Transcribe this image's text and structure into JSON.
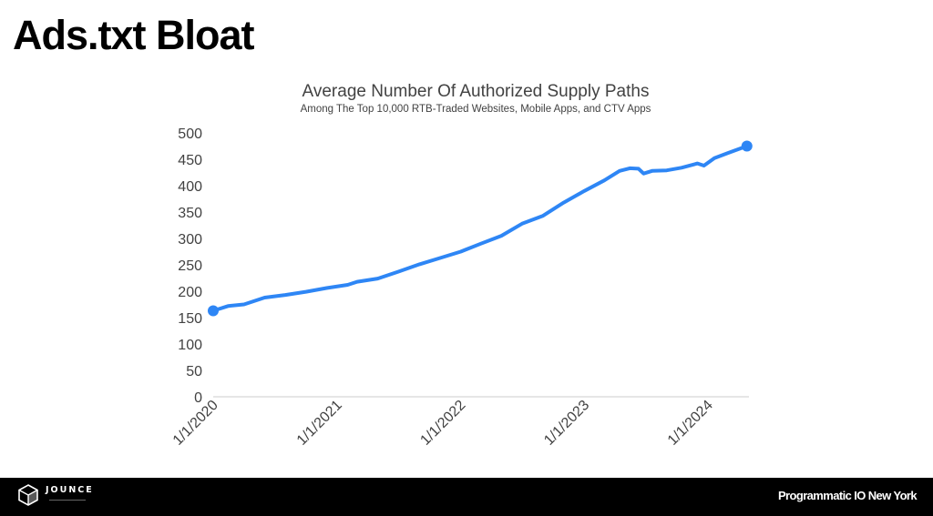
{
  "slide": {
    "title": "Ads.txt Bloat"
  },
  "footer": {
    "brand_name": "JOUNCE",
    "event_name": "Programmatic IO New York"
  },
  "colors": {
    "series": "#2e86f5",
    "axis_text": "#424242",
    "baseline": "#cccccc",
    "footer_bg": "#000000"
  },
  "chart_data": {
    "type": "line",
    "title": "Average Number Of Authorized Supply Paths",
    "subtitle": "Among The Top 10,000 RTB-Traded Websites, Mobile Apps, and CTV Apps",
    "xlabel": "",
    "ylabel": "",
    "ylim": [
      0,
      500
    ],
    "yticks": [
      0,
      50,
      100,
      150,
      200,
      250,
      300,
      350,
      400,
      450,
      500
    ],
    "xlim": [
      "2020-01-01",
      "2024-05-01"
    ],
    "xtick_labels": [
      "1/1/2020",
      "1/1/2021",
      "1/1/2022",
      "1/1/2023",
      "1/1/2024"
    ],
    "xtick_dates": [
      "2020-01-01",
      "2021-01-01",
      "2022-01-01",
      "2023-01-01",
      "2024-01-01"
    ],
    "grid": false,
    "legend": "none",
    "markers": "first-and-last-points",
    "series": [
      {
        "points": [
          [
            "2020-01-01",
            163
          ],
          [
            "2020-02-15",
            172
          ],
          [
            "2020-04-01",
            175
          ],
          [
            "2020-06-01",
            188
          ],
          [
            "2020-08-01",
            193
          ],
          [
            "2020-10-01",
            199
          ],
          [
            "2020-12-01",
            206
          ],
          [
            "2021-02-01",
            212
          ],
          [
            "2021-03-01",
            218
          ],
          [
            "2021-05-01",
            224
          ],
          [
            "2021-07-01",
            237
          ],
          [
            "2021-09-01",
            251
          ],
          [
            "2021-11-01",
            263
          ],
          [
            "2022-01-01",
            275
          ],
          [
            "2022-03-01",
            290
          ],
          [
            "2022-05-01",
            305
          ],
          [
            "2022-07-01",
            328
          ],
          [
            "2022-09-01",
            343
          ],
          [
            "2022-11-01",
            368
          ],
          [
            "2023-01-01",
            390
          ],
          [
            "2023-03-01",
            410
          ],
          [
            "2023-04-15",
            428
          ],
          [
            "2023-05-15",
            433
          ],
          [
            "2023-06-10",
            432
          ],
          [
            "2023-06-25",
            423
          ],
          [
            "2023-07-20",
            428
          ],
          [
            "2023-09-01",
            429
          ],
          [
            "2023-10-15",
            434
          ],
          [
            "2023-12-01",
            442
          ],
          [
            "2023-12-20",
            438
          ],
          [
            "2024-01-20",
            452
          ],
          [
            "2024-03-01",
            462
          ],
          [
            "2024-04-25",
            475
          ]
        ]
      }
    ]
  }
}
